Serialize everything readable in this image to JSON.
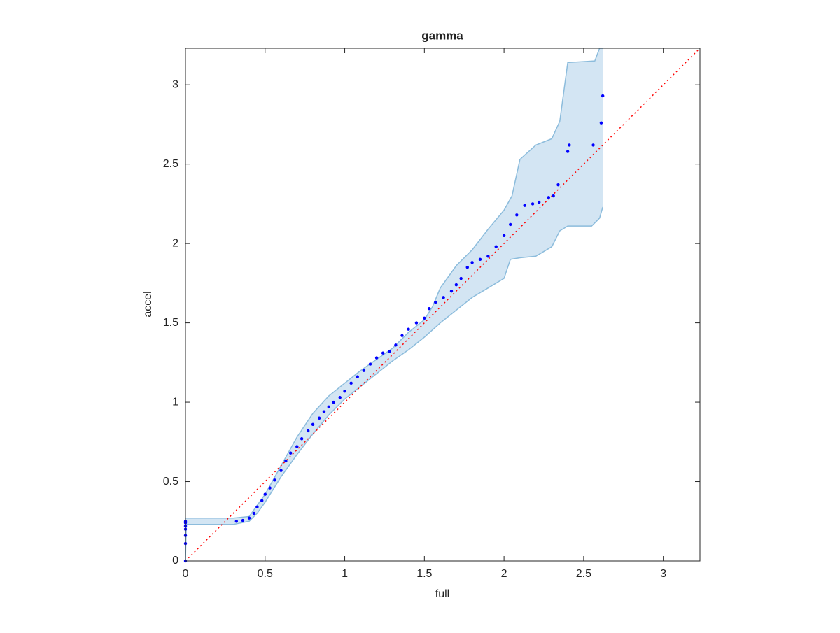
{
  "chart_data": {
    "type": "scatter",
    "title": "gamma",
    "xlabel": "full",
    "ylabel": "accel",
    "xlim": [
      0,
      3.23
    ],
    "ylim": [
      0,
      3.23
    ],
    "xticks": [
      0,
      0.5,
      1,
      1.5,
      2,
      2.5,
      3
    ],
    "yticks": [
      0,
      0.5,
      1,
      1.5,
      2,
      2.5,
      3
    ],
    "points": {
      "color": "#0000ff",
      "x": [
        0,
        0,
        0,
        0,
        0,
        0,
        0,
        0.32,
        0.36,
        0.4,
        0.43,
        0.45,
        0.48,
        0.5,
        0.53,
        0.56,
        0.6,
        0.63,
        0.66,
        0.7,
        0.73,
        0.77,
        0.8,
        0.84,
        0.87,
        0.9,
        0.93,
        0.97,
        1.0,
        1.04,
        1.08,
        1.12,
        1.16,
        1.2,
        1.24,
        1.28,
        1.32,
        1.36,
        1.4,
        1.45,
        1.5,
        1.53,
        1.57,
        1.62,
        1.67,
        1.7,
        1.73,
        1.77,
        1.8,
        1.85,
        1.9,
        1.95,
        2.0,
        2.04,
        2.08,
        2.13,
        2.18,
        2.22,
        2.28,
        2.31,
        2.34,
        2.4,
        2.41,
        2.56,
        2.61,
        2.62
      ],
      "y": [
        0,
        0.11,
        0.16,
        0.2,
        0.22,
        0.24,
        0.25,
        0.25,
        0.255,
        0.27,
        0.3,
        0.34,
        0.38,
        0.42,
        0.46,
        0.51,
        0.57,
        0.63,
        0.68,
        0.72,
        0.77,
        0.82,
        0.86,
        0.9,
        0.94,
        0.97,
        1.0,
        1.03,
        1.07,
        1.12,
        1.16,
        1.2,
        1.24,
        1.28,
        1.31,
        1.32,
        1.36,
        1.42,
        1.46,
        1.5,
        1.53,
        1.59,
        1.63,
        1.66,
        1.7,
        1.74,
        1.78,
        1.85,
        1.88,
        1.9,
        1.92,
        1.98,
        2.05,
        2.12,
        2.18,
        2.24,
        2.25,
        2.26,
        2.29,
        2.3,
        2.37,
        2.58,
        2.62,
        2.62,
        2.76,
        2.93
      ]
    },
    "band": {
      "color": "#d3e5f3",
      "edge_color": "#8cbcdc",
      "upper": {
        "x": [
          0,
          0.3,
          0.4,
          0.5,
          0.6,
          0.7,
          0.8,
          0.9,
          1.0,
          1.1,
          1.2,
          1.3,
          1.4,
          1.5,
          1.55,
          1.6,
          1.7,
          1.8,
          1.9,
          2.0,
          2.05,
          2.1,
          2.2,
          2.3,
          2.35,
          2.4,
          2.57,
          2.6,
          2.62
        ],
        "y": [
          0.27,
          0.27,
          0.28,
          0.42,
          0.6,
          0.78,
          0.93,
          1.04,
          1.12,
          1.2,
          1.27,
          1.34,
          1.44,
          1.52,
          1.6,
          1.72,
          1.86,
          1.96,
          2.09,
          2.21,
          2.3,
          2.53,
          2.62,
          2.66,
          2.77,
          3.14,
          3.15,
          3.23,
          3.23
        ]
      },
      "lower": {
        "x": [
          0,
          0.005,
          0.3,
          0.4,
          0.45,
          0.5,
          0.6,
          0.7,
          0.8,
          0.9,
          1.0,
          1.1,
          1.2,
          1.3,
          1.4,
          1.5,
          1.6,
          1.7,
          1.8,
          1.9,
          2.0,
          2.04,
          2.1,
          2.2,
          2.3,
          2.35,
          2.4,
          2.55,
          2.6,
          2.62
        ],
        "y": [
          0,
          0.23,
          0.23,
          0.25,
          0.3,
          0.37,
          0.53,
          0.67,
          0.8,
          0.92,
          1.02,
          1.1,
          1.18,
          1.26,
          1.33,
          1.41,
          1.5,
          1.58,
          1.66,
          1.72,
          1.78,
          1.9,
          1.91,
          1.92,
          1.98,
          2.08,
          2.11,
          2.11,
          2.16,
          2.23
        ]
      }
    },
    "reference_line": {
      "color": "#ff0000",
      "x": [
        0,
        3.23
      ],
      "y": [
        0,
        3.23
      ]
    }
  }
}
